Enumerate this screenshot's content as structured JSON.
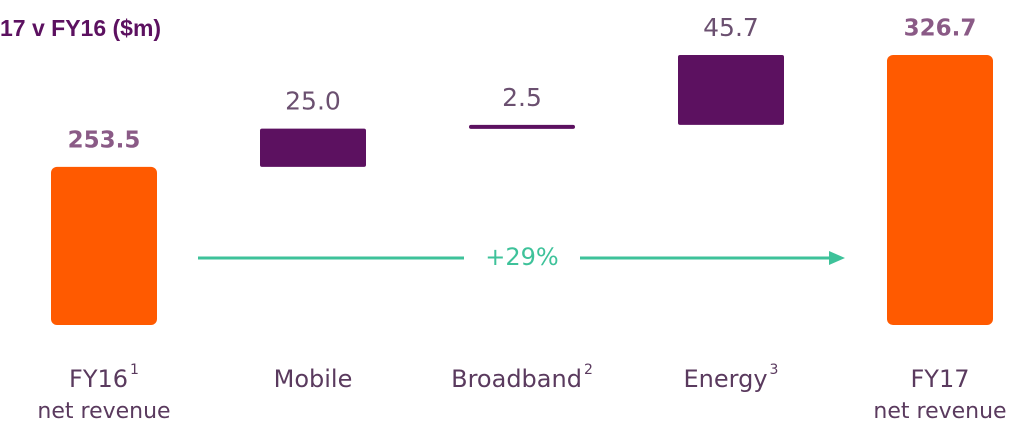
{
  "chart_data": {
    "type": "waterfall",
    "title": "17 v FY16 ($m)",
    "categories": [
      "FY16",
      "Mobile",
      "Broadband",
      "Energy",
      "FY17"
    ],
    "category_sublabels": [
      "net revenue",
      null,
      null,
      null,
      "net revenue"
    ],
    "footnotes": [
      "1",
      null,
      "2",
      "3",
      null
    ],
    "values": [
      253.5,
      25.0,
      2.5,
      45.7,
      326.7
    ],
    "value_labels": [
      "253.5",
      "25.0",
      "2.5",
      "45.7",
      "326.7"
    ],
    "kinds": [
      "total",
      "delta",
      "delta",
      "delta",
      "total"
    ],
    "total_color": "#ff5a00",
    "delta_color": "#5c1160",
    "ylim": [
      150,
      330
    ],
    "annotation": "+29%",
    "annotation_color": "#3ec29a"
  }
}
